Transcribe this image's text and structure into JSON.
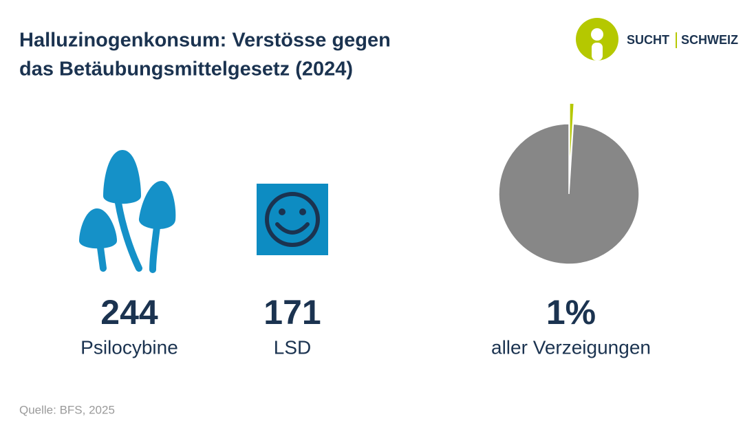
{
  "header": {
    "title": [
      "Halluzinogenkonsum: Verstösse gegen",
      "das Betäubungsmittelgesetz (2024)"
    ]
  },
  "logo": {
    "left": "SUCHT",
    "right": "SCHWEIZ"
  },
  "stats": [
    {
      "value": 244,
      "label": "Psilocybine"
    },
    {
      "value": 171,
      "label": "LSD"
    }
  ],
  "chart_data": {
    "type": "pie",
    "values": [
      1,
      99
    ],
    "value_labels": [
      "1%",
      null
    ],
    "colors": [
      "#b5c800",
      "#878787"
    ],
    "caption": "aller Verzeigungen"
  },
  "source": "Quelle: BFS, 2025"
}
